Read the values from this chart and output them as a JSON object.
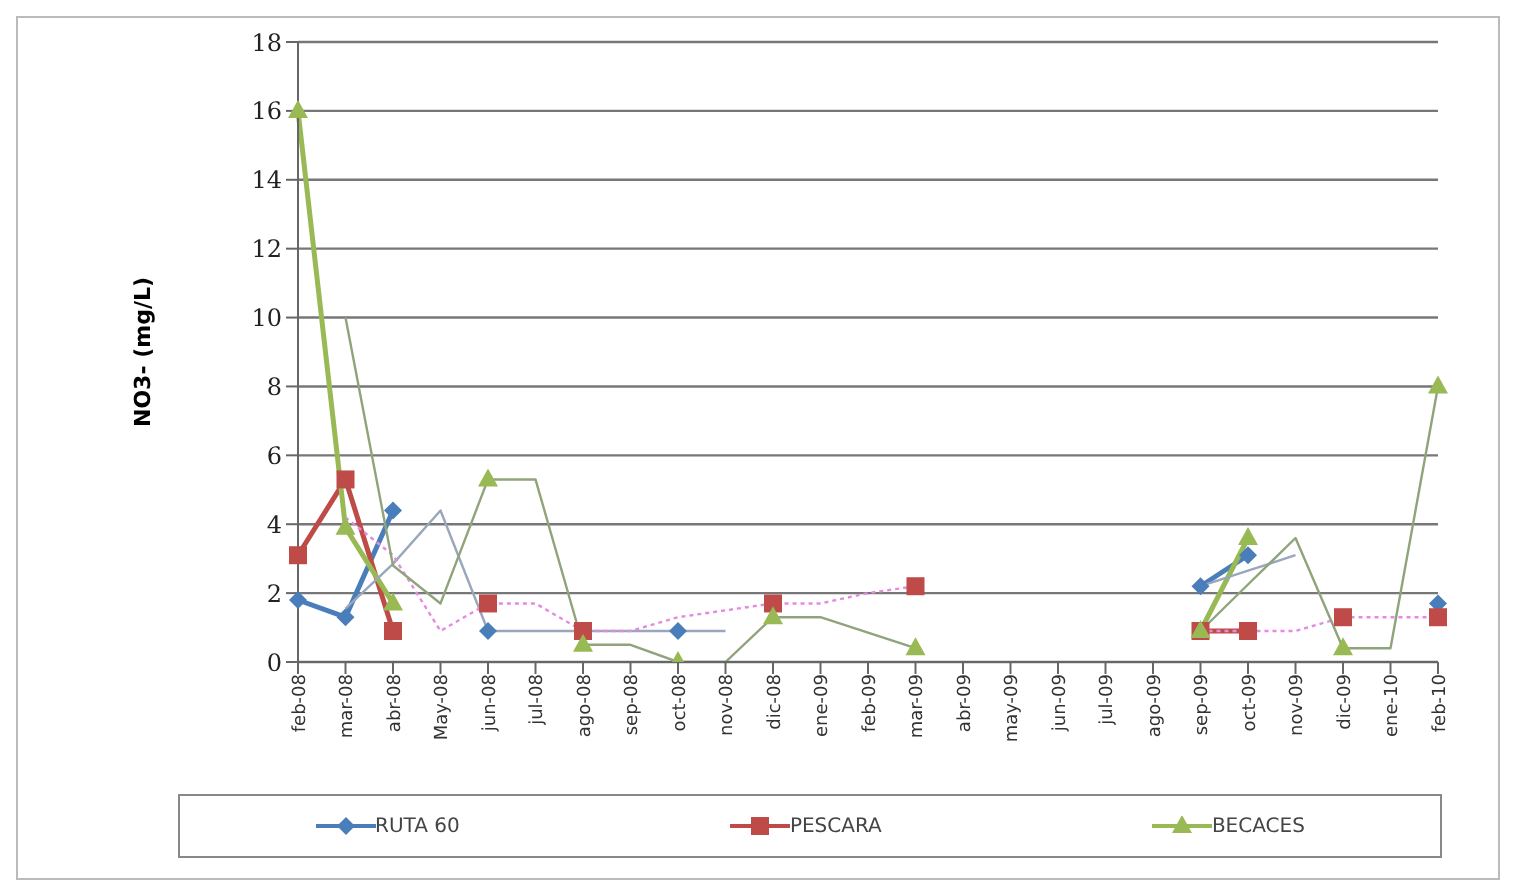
{
  "chart_data": {
    "type": "line",
    "ylabel": "NO3- (mg/L)",
    "categories": [
      "feb-08",
      "mar-08",
      "abr-08",
      "May-08",
      "jun-08",
      "jul-08",
      "ago-08",
      "sep-08",
      "oct-08",
      "nov-08",
      "dic-08",
      "ene-09",
      "feb-09",
      "mar-09",
      "abr-09",
      "may-09",
      "jun-09",
      "jul-09",
      "ago-09",
      "sep-09",
      "oct-09",
      "nov-09",
      "dic-09",
      "ene-10",
      "feb-10"
    ],
    "ylim": [
      0,
      18
    ],
    "yticks": [
      0,
      2,
      4,
      6,
      8,
      10,
      12,
      14,
      16,
      18
    ],
    "grid": "y",
    "legend": "bottom",
    "series": [
      {
        "name": "RUTA 60",
        "color": "#4a7ebb",
        "marker": "diamond",
        "values": [
          1.8,
          1.3,
          4.4,
          null,
          0.9,
          null,
          null,
          null,
          0.9,
          null,
          null,
          null,
          null,
          null,
          null,
          null,
          null,
          null,
          null,
          2.2,
          3.1,
          null,
          null,
          null,
          1.7
        ]
      },
      {
        "name": "PESCARA",
        "color": "#be4b48",
        "marker": "square",
        "values": [
          3.1,
          5.3,
          0.9,
          null,
          1.7,
          null,
          0.9,
          null,
          null,
          null,
          1.7,
          null,
          null,
          2.2,
          null,
          null,
          null,
          null,
          null,
          0.9,
          0.9,
          null,
          1.3,
          null,
          1.3
        ]
      },
      {
        "name": "BECACES",
        "color": "#98b954",
        "marker": "triangle",
        "values": [
          16,
          3.9,
          1.7,
          null,
          5.3,
          null,
          0.5,
          null,
          0,
          null,
          1.3,
          null,
          null,
          0.4,
          null,
          null,
          null,
          null,
          null,
          0.9,
          3.6,
          null,
          0.4,
          null,
          8
        ]
      },
      {
        "color": "#9aa6bc",
        "marker": "none",
        "line_style": "solid",
        "values": [
          null,
          1.55,
          2.85,
          4.4,
          0.9,
          0.9,
          0.9,
          0.9,
          0.9,
          0.9,
          null,
          null,
          null,
          null,
          null,
          null,
          null,
          null,
          null,
          2.2,
          2.65,
          3.1,
          null,
          null,
          null
        ]
      },
      {
        "color": "#e58ae0",
        "marker": "none",
        "line_style": "dotted",
        "values": [
          null,
          4.2,
          3.1,
          0.9,
          1.7,
          1.7,
          0.9,
          0.9,
          1.3,
          1.5,
          1.7,
          1.7,
          2,
          2.2,
          null,
          null,
          null,
          null,
          null,
          0.9,
          0.9,
          0.9,
          1.3,
          1.3,
          1.3
        ]
      },
      {
        "color": "#8fa47a",
        "marker": "none",
        "line_style": "solid",
        "values": [
          null,
          10,
          2.8,
          1.7,
          5.3,
          5.3,
          0.5,
          0.5,
          0,
          0,
          1.3,
          1.3,
          0.85,
          0.4,
          null,
          null,
          null,
          null,
          null,
          0.9,
          2.25,
          3.6,
          0.4,
          0.4,
          8
        ]
      }
    ]
  }
}
